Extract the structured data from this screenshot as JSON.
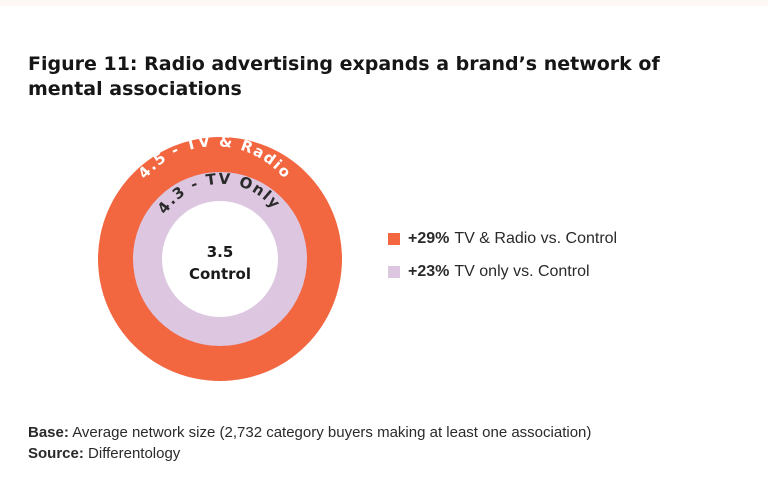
{
  "title": "Figure 11: Radio advertising expands a brand’s network of mental associations",
  "chart_data": {
    "type": "pie",
    "rings": [
      {
        "label": "4.5 - TV & Radio",
        "value": 4.5,
        "color": "#f26640"
      },
      {
        "label": "4.3 - TV Only",
        "value": 4.3,
        "color": "#dcc6e0"
      }
    ],
    "center": {
      "value": "3.5",
      "label": "Control"
    },
    "legend": [
      {
        "value": "+29%",
        "text": "TV & Radio vs. Control",
        "color": "#f26640"
      },
      {
        "value": "+23%",
        "text": "TV only vs. Control",
        "color": "#dcc6e0"
      }
    ],
    "legend_position": "right"
  },
  "footer": {
    "base_label": "Base:",
    "base_text": "Average network size (2,732 category buyers making at least one association)",
    "source_label": "Source:",
    "source_text": "Differentology"
  }
}
